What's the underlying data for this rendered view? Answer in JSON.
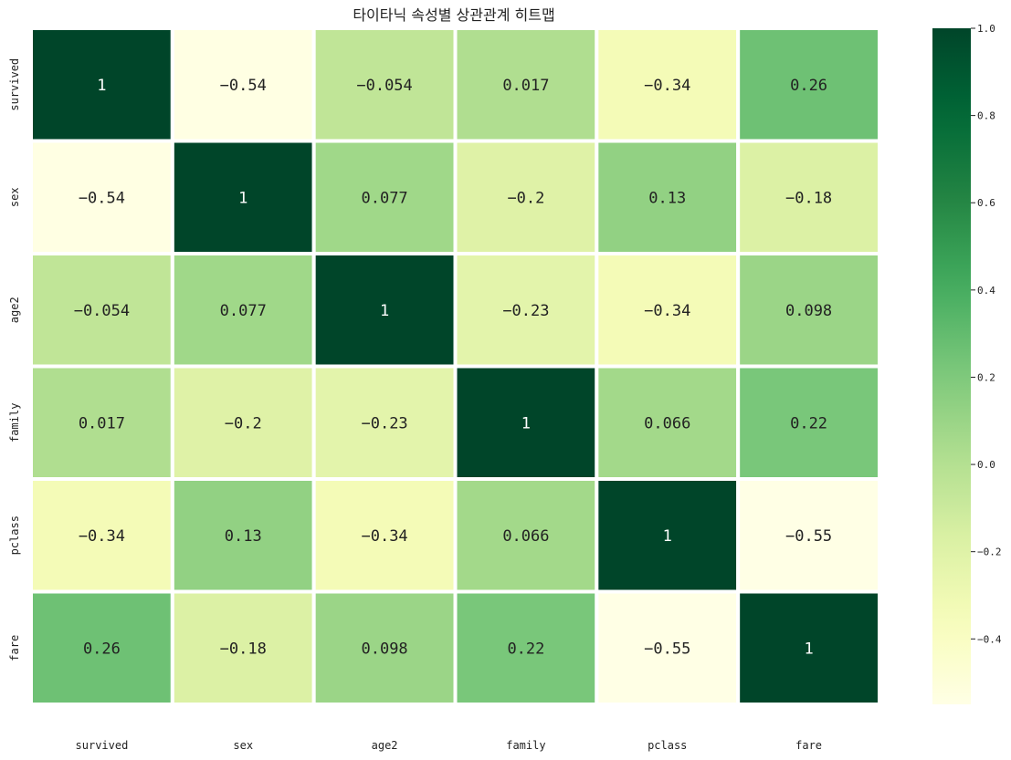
{
  "chart_data": {
    "type": "heatmap",
    "title": "타이타닉 속성별 상관관계 히트맵",
    "row_labels": [
      "survived",
      "sex",
      "age2",
      "family",
      "pclass",
      "fare"
    ],
    "col_labels": [
      "survived",
      "sex",
      "age2",
      "family",
      "pclass",
      "fare"
    ],
    "values": [
      [
        1,
        -0.54,
        -0.054,
        0.017,
        -0.34,
        0.26
      ],
      [
        -0.54,
        1,
        0.077,
        -0.2,
        0.13,
        -0.18
      ],
      [
        -0.054,
        0.077,
        1,
        -0.23,
        -0.34,
        0.098
      ],
      [
        0.017,
        -0.2,
        -0.23,
        1,
        0.066,
        0.22
      ],
      [
        -0.34,
        0.13,
        -0.34,
        0.066,
        1,
        -0.55
      ],
      [
        0.26,
        -0.18,
        0.098,
        0.22,
        -0.55,
        1
      ]
    ],
    "value_labels": [
      [
        "1",
        "−0.54",
        "−0.054",
        "0.017",
        "−0.34",
        "0.26"
      ],
      [
        "−0.54",
        "1",
        "0.077",
        "−0.2",
        "0.13",
        "−0.18"
      ],
      [
        "−0.054",
        "0.077",
        "1",
        "−0.23",
        "−0.34",
        "0.098"
      ],
      [
        "0.017",
        "−0.2",
        "−0.23",
        "1",
        "0.066",
        "0.22"
      ],
      [
        "−0.34",
        "0.13",
        "−0.34",
        "0.066",
        "1",
        "−0.55"
      ],
      [
        "0.26",
        "−0.18",
        "0.098",
        "0.22",
        "−0.55",
        "1"
      ]
    ],
    "colormap": "YlGn",
    "vmin": -0.55,
    "vmax": 1.0,
    "colorbar_ticks": [
      1.0,
      0.8,
      0.6,
      0.4,
      0.2,
      0.0,
      -0.2,
      -0.4
    ],
    "colorbar_tick_labels": [
      "1.0",
      "0.8",
      "0.6",
      "0.4",
      "0.2",
      "0.0",
      "−0.2",
      "−0.4"
    ],
    "cell_border_color": "#ffffff",
    "annotation_dark_color": "#222222",
    "annotation_light_color": "#ffffff"
  }
}
